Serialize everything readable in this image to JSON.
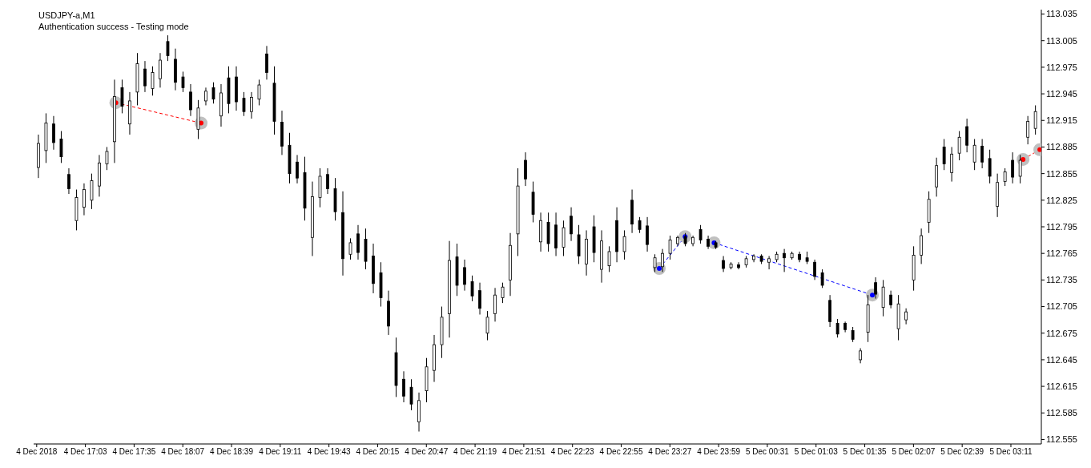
{
  "chart_data": {
    "type": "candlestick",
    "title": "USDJPY-a,M1",
    "subtitle": "Authentication success - Testing mode",
    "color": "#000000",
    "x": [
      "2018-12-04T16:32",
      "2018-12-04T16:37",
      "2018-12-04T16:42",
      "2018-12-04T16:47",
      "2018-12-04T16:52",
      "2018-12-04T16:57",
      "2018-12-04T17:02",
      "2018-12-04T17:07",
      "2018-12-04T17:12",
      "2018-12-04T17:17",
      "2018-12-04T17:22",
      "2018-12-04T17:27",
      "2018-12-04T17:32",
      "2018-12-04T17:37",
      "2018-12-04T17:42",
      "2018-12-04T17:47",
      "2018-12-04T17:52",
      "2018-12-04T17:57",
      "2018-12-04T18:02",
      "2018-12-04T18:07",
      "2018-12-04T18:12",
      "2018-12-04T18:17",
      "2018-12-04T18:22",
      "2018-12-04T18:27",
      "2018-12-04T18:32",
      "2018-12-04T18:37",
      "2018-12-04T18:42",
      "2018-12-04T18:47",
      "2018-12-04T18:52",
      "2018-12-04T18:57",
      "2018-12-04T19:02",
      "2018-12-04T19:07",
      "2018-12-04T19:12",
      "2018-12-04T19:17",
      "2018-12-04T19:22",
      "2018-12-04T19:27",
      "2018-12-04T19:32",
      "2018-12-04T19:37",
      "2018-12-04T19:42",
      "2018-12-04T19:47",
      "2018-12-04T19:52",
      "2018-12-04T19:57",
      "2018-12-04T20:02",
      "2018-12-04T20:07",
      "2018-12-04T20:12",
      "2018-12-04T20:17",
      "2018-12-04T20:22",
      "2018-12-04T20:27",
      "2018-12-04T20:32",
      "2018-12-04T20:37",
      "2018-12-04T20:42",
      "2018-12-04T20:47",
      "2018-12-04T20:52",
      "2018-12-04T20:57",
      "2018-12-04T21:02",
      "2018-12-04T21:07",
      "2018-12-04T21:12",
      "2018-12-04T21:17",
      "2018-12-04T21:22",
      "2018-12-04T21:27",
      "2018-12-04T21:32",
      "2018-12-04T21:37",
      "2018-12-04T21:42",
      "2018-12-04T21:47",
      "2018-12-04T21:52",
      "2018-12-04T21:57",
      "2018-12-04T22:02",
      "2018-12-04T22:07",
      "2018-12-04T22:12",
      "2018-12-04T22:17",
      "2018-12-04T22:22",
      "2018-12-04T22:27",
      "2018-12-04T22:32",
      "2018-12-04T22:37",
      "2018-12-04T22:42",
      "2018-12-04T22:47",
      "2018-12-04T22:52",
      "2018-12-04T22:57",
      "2018-12-04T23:02",
      "2018-12-04T23:07",
      "2018-12-04T23:12",
      "2018-12-04T23:17",
      "2018-12-04T23:22",
      "2018-12-04T23:27",
      "2018-12-04T23:32",
      "2018-12-04T23:37",
      "2018-12-04T23:42",
      "2018-12-04T23:47",
      "2018-12-04T23:52",
      "2018-12-04T23:57",
      "2018-12-05T00:02",
      "2018-12-05T00:07",
      "2018-12-05T00:12",
      "2018-12-05T00:17",
      "2018-12-05T00:22",
      "2018-12-05T00:27",
      "2018-12-05T00:32",
      "2018-12-05T00:37",
      "2018-12-05T00:42",
      "2018-12-05T00:47",
      "2018-12-05T00:52",
      "2018-12-05T00:57",
      "2018-12-05T01:02",
      "2018-12-05T01:07",
      "2018-12-05T01:12",
      "2018-12-05T01:17",
      "2018-12-05T01:22",
      "2018-12-05T01:27",
      "2018-12-05T01:32",
      "2018-12-05T01:37",
      "2018-12-05T01:42",
      "2018-12-05T01:47",
      "2018-12-05T01:52",
      "2018-12-05T01:57",
      "2018-12-05T02:02",
      "2018-12-05T02:07",
      "2018-12-05T02:12",
      "2018-12-05T02:17",
      "2018-12-05T02:22",
      "2018-12-05T02:27",
      "2018-12-05T02:32",
      "2018-12-05T02:37",
      "2018-12-05T02:42",
      "2018-12-05T02:47",
      "2018-12-05T02:52",
      "2018-12-05T02:57",
      "2018-12-05T03:02",
      "2018-12-05T03:07",
      "2018-12-05T03:12",
      "2018-12-05T03:17",
      "2018-12-05T03:22",
      "2018-12-05T03:27"
    ],
    "ohlc": [
      [
        112.862,
        112.899,
        112.85,
        112.889
      ],
      [
        112.881,
        112.923,
        112.867,
        112.912
      ],
      [
        112.911,
        112.92,
        112.882,
        112.89
      ],
      [
        112.894,
        112.903,
        112.867,
        112.874
      ],
      [
        112.854,
        112.861,
        112.832,
        112.838
      ],
      [
        112.802,
        112.837,
        112.791,
        112.828
      ],
      [
        112.817,
        112.844,
        112.808,
        112.837
      ],
      [
        112.825,
        112.855,
        112.815,
        112.847
      ],
      [
        112.841,
        112.876,
        112.829,
        112.867
      ],
      [
        112.866,
        112.885,
        112.859,
        112.88
      ],
      [
        112.891,
        112.961,
        112.867,
        112.942
      ],
      [
        112.952,
        112.961,
        112.923,
        112.931
      ],
      [
        112.911,
        112.947,
        112.899,
        112.937
      ],
      [
        112.947,
        112.991,
        112.932,
        112.979
      ],
      [
        112.973,
        112.982,
        112.947,
        112.954
      ],
      [
        112.951,
        112.976,
        112.943,
        112.969
      ],
      [
        112.962,
        112.991,
        112.952,
        112.983
      ],
      [
        113.004,
        113.011,
        112.982,
        112.988
      ],
      [
        112.984,
        112.996,
        112.949,
        112.958
      ],
      [
        112.964,
        112.97,
        112.947,
        112.952
      ],
      [
        112.947,
        112.956,
        112.92,
        112.927
      ],
      [
        112.905,
        112.938,
        112.894,
        112.929
      ],
      [
        112.937,
        112.952,
        112.932,
        112.948
      ],
      [
        112.952,
        112.958,
        112.934,
        112.939
      ],
      [
        112.92,
        112.956,
        112.908,
        112.946
      ],
      [
        112.963,
        112.976,
        112.923,
        112.934
      ],
      [
        112.964,
        112.976,
        112.926,
        112.936
      ],
      [
        112.94,
        112.947,
        112.92,
        112.925
      ],
      [
        112.925,
        112.947,
        112.917,
        112.941
      ],
      [
        112.939,
        112.961,
        112.932,
        112.955
      ],
      [
        112.99,
        112.999,
        112.961,
        112.969
      ],
      [
        112.957,
        112.976,
        112.899,
        112.914
      ],
      [
        112.913,
        112.926,
        112.876,
        112.886
      ],
      [
        112.887,
        112.901,
        112.844,
        112.855
      ],
      [
        112.868,
        112.876,
        112.844,
        112.85
      ],
      [
        112.856,
        112.874,
        112.802,
        112.816
      ],
      [
        112.783,
        112.846,
        112.762,
        112.829
      ],
      [
        112.828,
        112.861,
        112.817,
        112.852
      ],
      [
        112.854,
        112.861,
        112.832,
        112.838
      ],
      [
        112.838,
        112.85,
        112.802,
        112.812
      ],
      [
        112.811,
        112.835,
        112.74,
        112.759
      ],
      [
        112.764,
        112.782,
        112.758,
        112.777
      ],
      [
        112.787,
        112.797,
        112.758,
        112.766
      ],
      [
        112.781,
        112.793,
        112.747,
        112.756
      ],
      [
        112.762,
        112.776,
        112.72,
        112.731
      ],
      [
        112.743,
        112.755,
        112.705,
        112.715
      ],
      [
        112.711,
        112.723,
        112.673,
        112.683
      ],
      [
        112.653,
        112.67,
        112.603,
        112.616
      ],
      [
        112.623,
        112.632,
        112.597,
        112.604
      ],
      [
        112.614,
        112.623,
        112.588,
        112.595
      ],
      [
        112.575,
        112.608,
        112.564,
        112.599
      ],
      [
        112.61,
        112.647,
        112.597,
        112.637
      ],
      [
        112.633,
        112.673,
        112.62,
        112.662
      ],
      [
        112.662,
        112.705,
        112.647,
        112.693
      ],
      [
        112.697,
        112.779,
        112.67,
        112.757
      ],
      [
        112.761,
        112.776,
        112.717,
        112.729
      ],
      [
        112.749,
        112.758,
        112.723,
        112.73
      ],
      [
        112.733,
        112.74,
        112.711,
        112.717
      ],
      [
        112.723,
        112.732,
        112.696,
        112.703
      ],
      [
        112.675,
        112.7,
        112.667,
        112.693
      ],
      [
        112.697,
        112.726,
        112.688,
        112.718
      ],
      [
        112.715,
        112.732,
        112.709,
        112.727
      ],
      [
        112.735,
        112.788,
        112.717,
        112.774
      ],
      [
        112.787,
        112.861,
        112.762,
        112.841
      ],
      [
        112.87,
        112.879,
        112.841,
        112.849
      ],
      [
        112.834,
        112.846,
        112.8,
        112.809
      ],
      [
        112.778,
        112.811,
        112.767,
        112.802
      ],
      [
        112.8,
        112.811,
        112.767,
        112.776
      ],
      [
        112.797,
        112.811,
        112.762,
        112.771
      ],
      [
        112.772,
        112.802,
        112.762,
        112.794
      ],
      [
        112.807,
        112.817,
        112.779,
        112.787
      ],
      [
        112.786,
        112.797,
        112.753,
        112.762
      ],
      [
        112.753,
        112.791,
        112.74,
        112.781
      ],
      [
        112.795,
        112.808,
        112.755,
        112.766
      ],
      [
        112.747,
        112.791,
        112.732,
        112.779
      ],
      [
        112.751,
        112.773,
        112.744,
        112.767
      ],
      [
        112.802,
        112.817,
        112.755,
        112.767
      ],
      [
        112.767,
        112.791,
        112.758,
        112.784
      ],
      [
        112.825,
        112.837,
        112.788,
        112.798
      ],
      [
        112.802,
        112.806,
        112.788,
        112.792
      ],
      [
        112.796,
        112.806,
        112.767,
        112.775
      ],
      [
        112.749,
        112.764,
        112.744,
        112.76
      ],
      [
        112.75,
        112.77,
        112.744,
        112.765
      ],
      [
        112.765,
        112.785,
        112.758,
        112.78
      ],
      [
        112.776,
        112.785,
        112.773,
        112.783
      ],
      [
        112.784,
        112.788,
        112.773,
        112.776
      ],
      [
        112.776,
        112.785,
        112.773,
        112.783
      ],
      [
        112.792,
        112.797,
        112.776,
        112.78
      ],
      [
        112.781,
        112.785,
        112.77,
        112.773
      ],
      [
        112.777,
        112.779,
        112.77,
        112.772
      ],
      [
        112.757,
        112.762,
        112.744,
        112.748
      ],
      [
        112.749,
        112.755,
        112.747,
        112.753
      ],
      [
        112.752,
        112.755,
        112.747,
        112.749
      ],
      [
        112.752,
        112.762,
        112.749,
        112.759
      ],
      [
        112.758,
        112.764,
        112.755,
        112.762
      ],
      [
        112.762,
        112.764,
        112.753,
        112.756
      ],
      [
        112.755,
        112.762,
        112.747,
        112.759
      ],
      [
        112.758,
        112.767,
        112.755,
        112.764
      ],
      [
        112.765,
        112.77,
        112.744,
        112.76
      ],
      [
        112.76,
        112.767,
        112.758,
        112.765
      ],
      [
        112.764,
        112.767,
        112.755,
        112.758
      ],
      [
        112.76,
        112.767,
        112.753,
        112.756
      ],
      [
        112.755,
        112.758,
        112.735,
        112.739
      ],
      [
        112.743,
        112.747,
        112.726,
        112.729
      ],
      [
        112.712,
        112.718,
        112.682,
        112.688
      ],
      [
        112.686,
        112.691,
        112.67,
        112.674
      ],
      [
        112.686,
        112.688,
        112.676,
        112.679
      ],
      [
        112.678,
        112.682,
        112.665,
        112.668
      ],
      [
        112.645,
        112.658,
        112.641,
        112.655
      ],
      [
        112.676,
        112.718,
        112.665,
        112.707
      ],
      [
        112.732,
        112.738,
        112.714,
        112.719
      ],
      [
        112.704,
        112.735,
        112.694,
        112.727
      ],
      [
        112.718,
        112.723,
        112.703,
        112.707
      ],
      [
        112.68,
        112.718,
        112.667,
        112.708
      ],
      [
        112.69,
        112.703,
        112.685,
        112.699
      ],
      [
        112.735,
        112.773,
        112.723,
        112.763
      ],
      [
        112.763,
        112.793,
        112.753,
        112.785
      ],
      [
        112.8,
        112.835,
        112.788,
        112.826
      ],
      [
        112.84,
        112.873,
        112.829,
        112.864
      ],
      [
        112.885,
        112.894,
        112.859,
        112.866
      ],
      [
        112.856,
        112.885,
        112.846,
        112.877
      ],
      [
        112.878,
        112.903,
        112.87,
        112.896
      ],
      [
        112.908,
        112.917,
        112.879,
        112.887
      ],
      [
        112.868,
        112.894,
        112.859,
        112.887
      ],
      [
        112.886,
        112.894,
        112.861,
        112.868
      ],
      [
        112.872,
        112.882,
        112.844,
        112.852
      ],
      [
        112.818,
        112.855,
        112.806,
        112.845
      ],
      [
        112.846,
        112.861,
        112.841,
        112.857
      ],
      [
        112.87,
        112.879,
        112.844,
        112.851
      ],
      [
        112.852,
        112.876,
        112.844,
        112.87
      ],
      [
        112.896,
        112.92,
        112.888,
        112.914
      ],
      [
        112.906,
        112.932,
        112.899,
        112.925
      ]
    ],
    "series": [
      {
        "type": "line",
        "color": "#ff0000",
        "x": [
          "2018-12-04T17:23",
          "2018-12-04T18:19"
        ],
        "values": [
          112.935,
          112.912
        ]
      },
      {
        "type": "line",
        "color": "#0000ff",
        "x": [
          "2018-12-04T23:20",
          "2018-12-04T23:37"
        ],
        "values": [
          112.748,
          112.784
        ]
      },
      {
        "type": "line",
        "color": "#0000ff",
        "x": [
          "2018-12-04T23:56",
          "2018-12-05T01:40"
        ],
        "values": [
          112.777,
          112.718
        ]
      },
      {
        "type": "line",
        "color": "#ff0000",
        "x": [
          "2018-12-05T03:19",
          "2018-12-05T03:30"
        ],
        "values": [
          112.871,
          112.882
        ]
      }
    ],
    "marker": "circle",
    "line_style": "dashed",
    "grid": false,
    "xlim": [
      "2018-12-04T16:29",
      "2018-12-05T03:31"
    ],
    "xticks": [
      {
        "value": "2018-12-04T16:31",
        "label": "4 Dec 2018"
      },
      {
        "value": "2018-12-04T17:03",
        "label": "4 Dec 17:03"
      },
      {
        "value": "2018-12-04T17:35",
        "label": "4 Dec 17:35"
      },
      {
        "value": "2018-12-04T18:07",
        "label": "4 Dec 18:07"
      },
      {
        "value": "2018-12-04T18:39",
        "label": "4 Dec 18:39"
      },
      {
        "value": "2018-12-04T19:11",
        "label": "4 Dec 19:11"
      },
      {
        "value": "2018-12-04T19:43",
        "label": "4 Dec 19:43"
      },
      {
        "value": "2018-12-04T20:15",
        "label": "4 Dec 20:15"
      },
      {
        "value": "2018-12-04T20:47",
        "label": "4 Dec 20:47"
      },
      {
        "value": "2018-12-04T21:19",
        "label": "4 Dec 21:19"
      },
      {
        "value": "2018-12-04T21:51",
        "label": "4 Dec 21:51"
      },
      {
        "value": "2018-12-04T22:23",
        "label": "4 Dec 22:23"
      },
      {
        "value": "2018-12-04T22:55",
        "label": "4 Dec 22:55"
      },
      {
        "value": "2018-12-04T23:27",
        "label": "4 Dec 23:27"
      },
      {
        "value": "2018-12-04T23:59",
        "label": "4 Dec 23:59"
      },
      {
        "value": "2018-12-05T00:31",
        "label": "5 Dec 00:31"
      },
      {
        "value": "2018-12-05T01:03",
        "label": "5 Dec 01:03"
      },
      {
        "value": "2018-12-05T01:35",
        "label": "5 Dec 01:35"
      },
      {
        "value": "2018-12-05T02:07",
        "label": "5 Dec 02:07"
      },
      {
        "value": "2018-12-05T02:39",
        "label": "5 Dec 02:39"
      },
      {
        "value": "2018-12-05T03:11",
        "label": "5 Dec 03:11"
      }
    ],
    "ylim": [
      112.55,
      113.04
    ],
    "yticks": [
      {
        "value": 112.555,
        "label": "112.555"
      },
      {
        "value": 112.585,
        "label": "112.585"
      },
      {
        "value": 112.615,
        "label": "112.615"
      },
      {
        "value": 112.645,
        "label": "112.645"
      },
      {
        "value": 112.675,
        "label": "112.675"
      },
      {
        "value": 112.705,
        "label": "112.705"
      },
      {
        "value": 112.735,
        "label": "112.735"
      },
      {
        "value": 112.765,
        "label": "112.765"
      },
      {
        "value": 112.795,
        "label": "112.795"
      },
      {
        "value": 112.825,
        "label": "112.825"
      },
      {
        "value": 112.855,
        "label": "112.855"
      },
      {
        "value": 112.885,
        "label": "112.885"
      },
      {
        "value": 112.915,
        "label": "112.915"
      },
      {
        "value": 112.945,
        "label": "112.945"
      },
      {
        "value": 112.975,
        "label": "112.975"
      },
      {
        "value": 113.005,
        "label": "113.005"
      },
      {
        "value": 113.035,
        "label": "113.035"
      }
    ]
  }
}
